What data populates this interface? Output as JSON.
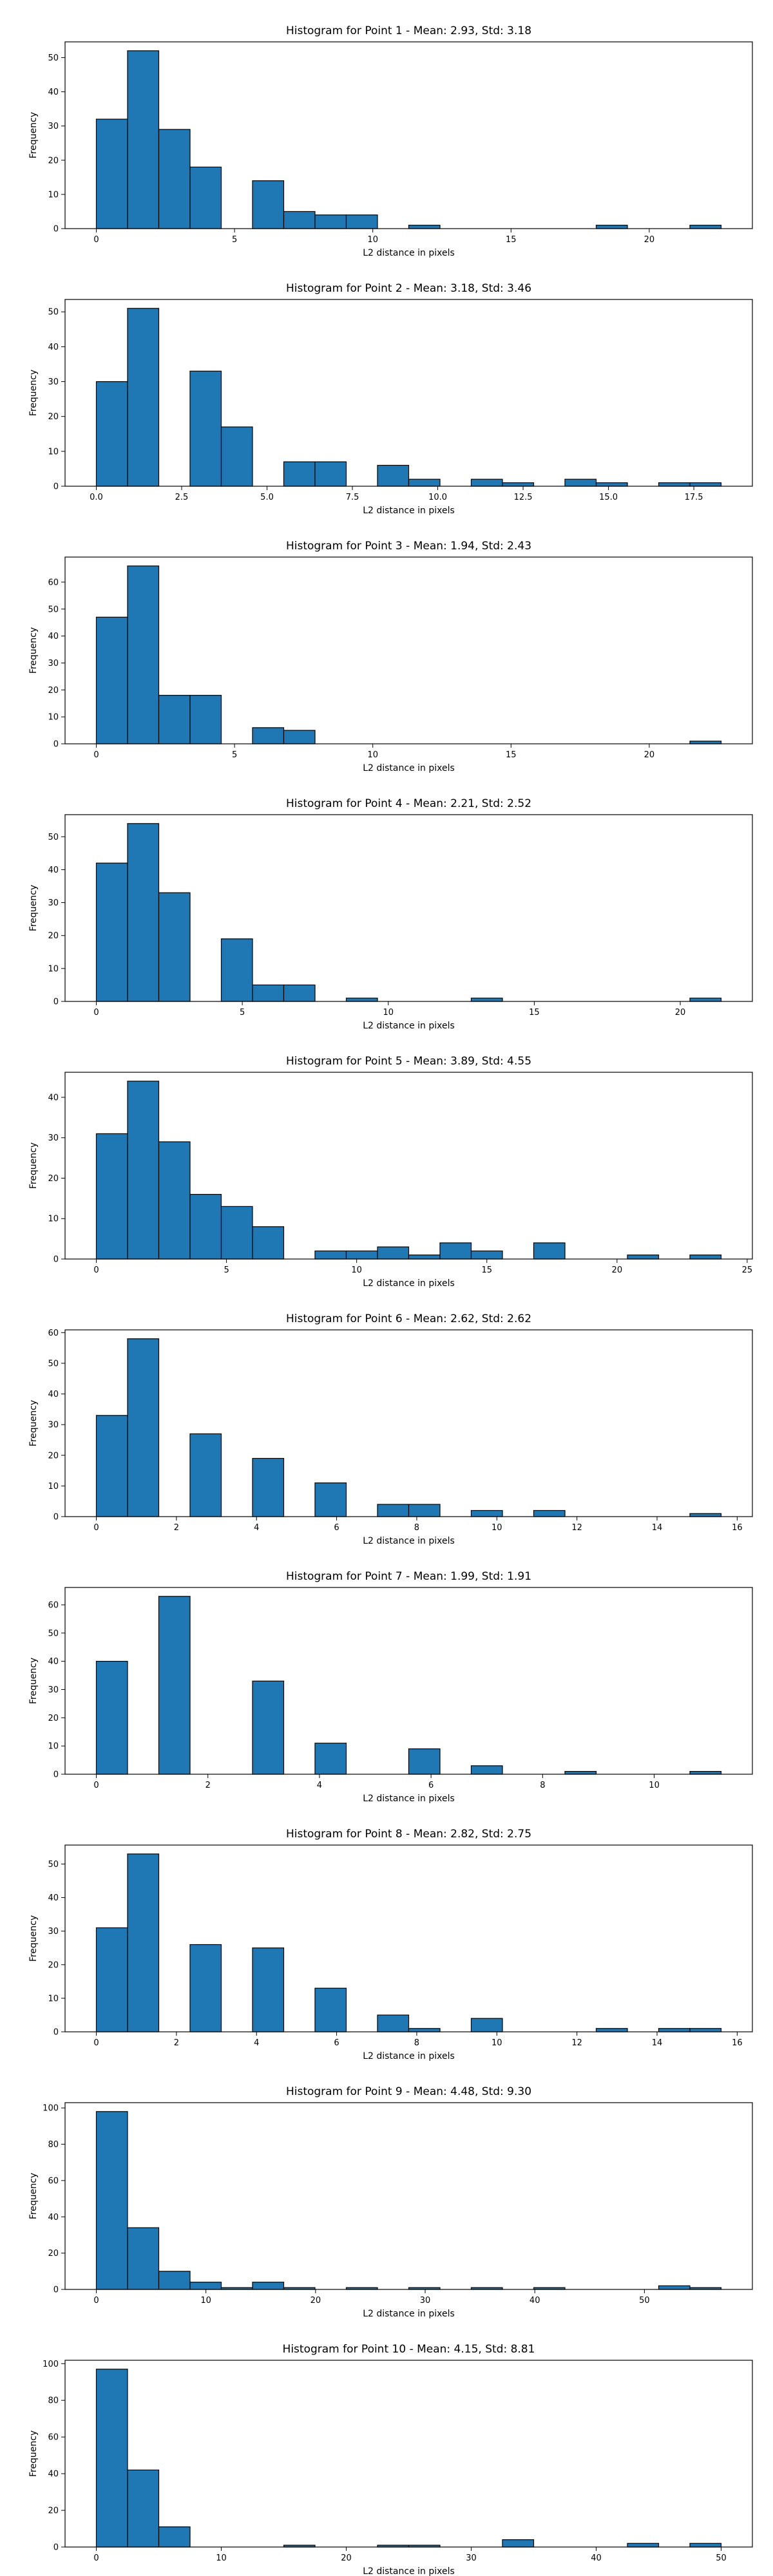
{
  "chart_data": [
    {
      "type": "bar",
      "title": "Histogram for Point 1 - Mean: 2.93, Std: 3.18",
      "xlabel": "L2 distance in pixels",
      "ylabel": "Frequency",
      "bin_width": 1.13,
      "bins": [
        {
          "x": 0.0,
          "count": 32
        },
        {
          "x": 1.13,
          "count": 52
        },
        {
          "x": 2.26,
          "count": 29
        },
        {
          "x": 3.39,
          "count": 18
        },
        {
          "x": 5.65,
          "count": 14
        },
        {
          "x": 6.78,
          "count": 5
        },
        {
          "x": 7.91,
          "count": 4
        },
        {
          "x": 9.04,
          "count": 4
        },
        {
          "x": 11.3,
          "count": 1
        },
        {
          "x": 18.08,
          "count": 1
        },
        {
          "x": 21.47,
          "count": 1
        }
      ],
      "xlim": [
        -1.13,
        23.73
      ],
      "ylim": [
        0,
        54.6
      ],
      "xticks": [
        0,
        5,
        10,
        15,
        20
      ],
      "xtick_labels": [
        "0",
        "5",
        "10",
        "15",
        "20"
      ],
      "yticks": [
        0,
        10,
        20,
        30,
        40,
        50
      ],
      "ytick_labels": [
        "0",
        "10",
        "20",
        "30",
        "40",
        "50"
      ]
    },
    {
      "type": "bar",
      "title": "Histogram for Point 2 - Mean: 3.18, Std: 3.46",
      "xlabel": "L2 distance in pixels",
      "ylabel": "Frequency",
      "bin_width": 0.915,
      "bins": [
        {
          "x": 0.0,
          "count": 30
        },
        {
          "x": 0.915,
          "count": 51
        },
        {
          "x": 2.745,
          "count": 33
        },
        {
          "x": 3.66,
          "count": 17
        },
        {
          "x": 5.49,
          "count": 7
        },
        {
          "x": 6.405,
          "count": 7
        },
        {
          "x": 8.235,
          "count": 6
        },
        {
          "x": 9.15,
          "count": 2
        },
        {
          "x": 10.98,
          "count": 2
        },
        {
          "x": 11.895,
          "count": 1
        },
        {
          "x": 13.725,
          "count": 2
        },
        {
          "x": 14.64,
          "count": 1
        },
        {
          "x": 16.47,
          "count": 1
        },
        {
          "x": 17.385,
          "count": 1
        }
      ],
      "xlim": [
        -0.915,
        19.215
      ],
      "ylim": [
        0,
        53.55
      ],
      "xticks": [
        0,
        2.5,
        5,
        7.5,
        10,
        12.5,
        15,
        17.5
      ],
      "xtick_labels": [
        "0.0",
        "2.5",
        "5.0",
        "7.5",
        "10.0",
        "12.5",
        "15.0",
        "17.5"
      ],
      "yticks": [
        0,
        10,
        20,
        30,
        40,
        50
      ],
      "ytick_labels": [
        "0",
        "10",
        "20",
        "30",
        "40",
        "50"
      ]
    },
    {
      "type": "bar",
      "title": "Histogram for Point 3 - Mean: 1.94, Std: 2.43",
      "xlabel": "L2 distance in pixels",
      "ylabel": "Frequency",
      "bin_width": 1.13,
      "bins": [
        {
          "x": 0.0,
          "count": 47
        },
        {
          "x": 1.13,
          "count": 66
        },
        {
          "x": 2.26,
          "count": 18
        },
        {
          "x": 3.39,
          "count": 18
        },
        {
          "x": 5.65,
          "count": 6
        },
        {
          "x": 6.78,
          "count": 5
        },
        {
          "x": 21.47,
          "count": 1
        }
      ],
      "xlim": [
        -1.13,
        23.73
      ],
      "ylim": [
        0,
        69.3
      ],
      "xticks": [
        0,
        5,
        10,
        15,
        20
      ],
      "xtick_labels": [
        "0",
        "5",
        "10",
        "15",
        "20"
      ],
      "yticks": [
        0,
        10,
        20,
        30,
        40,
        50,
        60
      ],
      "ytick_labels": [
        "0",
        "10",
        "20",
        "30",
        "40",
        "50",
        "60"
      ]
    },
    {
      "type": "bar",
      "title": "Histogram for Point 4 - Mean: 2.21, Std: 2.52",
      "xlabel": "L2 distance in pixels",
      "ylabel": "Frequency",
      "bin_width": 1.07,
      "bins": [
        {
          "x": 0.0,
          "count": 42
        },
        {
          "x": 1.07,
          "count": 54
        },
        {
          "x": 2.14,
          "count": 33
        },
        {
          "x": 4.28,
          "count": 19
        },
        {
          "x": 5.35,
          "count": 5
        },
        {
          "x": 6.42,
          "count": 5
        },
        {
          "x": 8.56,
          "count": 1
        },
        {
          "x": 12.84,
          "count": 1
        },
        {
          "x": 20.33,
          "count": 1
        }
      ],
      "xlim": [
        -1.07,
        22.47
      ],
      "ylim": [
        0,
        56.7
      ],
      "xticks": [
        0,
        5,
        10,
        15,
        20
      ],
      "xtick_labels": [
        "0",
        "5",
        "10",
        "15",
        "20"
      ],
      "yticks": [
        0,
        10,
        20,
        30,
        40,
        50
      ],
      "ytick_labels": [
        "0",
        "10",
        "20",
        "30",
        "40",
        "50"
      ]
    },
    {
      "type": "bar",
      "title": "Histogram for Point 5 - Mean: 3.89, Std: 4.55",
      "xlabel": "L2 distance in pixels",
      "ylabel": "Frequency",
      "bin_width": 1.2,
      "bins": [
        {
          "x": 0.0,
          "count": 31
        },
        {
          "x": 1.2,
          "count": 44
        },
        {
          "x": 2.4,
          "count": 29
        },
        {
          "x": 3.6,
          "count": 16
        },
        {
          "x": 4.8,
          "count": 13
        },
        {
          "x": 6.0,
          "count": 8
        },
        {
          "x": 8.4,
          "count": 2
        },
        {
          "x": 9.6,
          "count": 2
        },
        {
          "x": 10.8,
          "count": 3
        },
        {
          "x": 12.0,
          "count": 1
        },
        {
          "x": 13.2,
          "count": 4
        },
        {
          "x": 14.4,
          "count": 2
        },
        {
          "x": 16.8,
          "count": 4
        },
        {
          "x": 20.4,
          "count": 1
        },
        {
          "x": 22.8,
          "count": 1
        }
      ],
      "xlim": [
        -1.2,
        25.2
      ],
      "ylim": [
        0,
        46.2
      ],
      "xticks": [
        0,
        5,
        10,
        15,
        20,
        25
      ],
      "xtick_labels": [
        "0",
        "5",
        "10",
        "15",
        "20",
        "25"
      ],
      "yticks": [
        0,
        10,
        20,
        30,
        40
      ],
      "ytick_labels": [
        "0",
        "10",
        "20",
        "30",
        "40"
      ]
    },
    {
      "type": "bar",
      "title": "Histogram for Point 6 - Mean: 2.62, Std: 2.62",
      "xlabel": "L2 distance in pixels",
      "ylabel": "Frequency",
      "bin_width": 0.78,
      "bins": [
        {
          "x": 0.0,
          "count": 33
        },
        {
          "x": 0.78,
          "count": 58
        },
        {
          "x": 2.34,
          "count": 27
        },
        {
          "x": 3.9,
          "count": 19
        },
        {
          "x": 5.46,
          "count": 11
        },
        {
          "x": 7.02,
          "count": 4
        },
        {
          "x": 7.8,
          "count": 4
        },
        {
          "x": 9.36,
          "count": 2
        },
        {
          "x": 10.92,
          "count": 2
        },
        {
          "x": 14.82,
          "count": 1
        }
      ],
      "xlim": [
        -0.78,
        16.38
      ],
      "ylim": [
        0,
        60.9
      ],
      "xticks": [
        0,
        2,
        4,
        6,
        8,
        10,
        12,
        14,
        16
      ],
      "xtick_labels": [
        "0",
        "2",
        "4",
        "6",
        "8",
        "10",
        "12",
        "14",
        "16"
      ],
      "yticks": [
        0,
        10,
        20,
        30,
        40,
        50,
        60
      ],
      "ytick_labels": [
        "0",
        "10",
        "20",
        "30",
        "40",
        "50",
        "60"
      ]
    },
    {
      "type": "bar",
      "title": "Histogram for Point 7 - Mean: 1.99, Std: 1.91",
      "xlabel": "L2 distance in pixels",
      "ylabel": "Frequency",
      "bin_width": 0.56,
      "bins": [
        {
          "x": 0.0,
          "count": 40
        },
        {
          "x": 1.12,
          "count": 63
        },
        {
          "x": 2.8,
          "count": 33
        },
        {
          "x": 3.92,
          "count": 11
        },
        {
          "x": 5.6,
          "count": 9
        },
        {
          "x": 6.72,
          "count": 3
        },
        {
          "x": 8.4,
          "count": 1
        },
        {
          "x": 10.64,
          "count": 1
        }
      ],
      "xlim": [
        -0.56,
        11.76
      ],
      "ylim": [
        0,
        66.15
      ],
      "xticks": [
        0,
        2,
        4,
        6,
        8,
        10
      ],
      "xtick_labels": [
        "0",
        "2",
        "4",
        "6",
        "8",
        "10"
      ],
      "yticks": [
        0,
        10,
        20,
        30,
        40,
        50,
        60
      ],
      "ytick_labels": [
        "0",
        "10",
        "20",
        "30",
        "40",
        "50",
        "60"
      ]
    },
    {
      "type": "bar",
      "title": "Histogram for Point 8 - Mean: 2.82, Std: 2.75",
      "xlabel": "L2 distance in pixels",
      "ylabel": "Frequency",
      "bin_width": 0.78,
      "bins": [
        {
          "x": 0.0,
          "count": 31
        },
        {
          "x": 0.78,
          "count": 53
        },
        {
          "x": 2.34,
          "count": 26
        },
        {
          "x": 3.9,
          "count": 25
        },
        {
          "x": 5.46,
          "count": 13
        },
        {
          "x": 7.02,
          "count": 5
        },
        {
          "x": 7.8,
          "count": 1
        },
        {
          "x": 9.36,
          "count": 4
        },
        {
          "x": 12.48,
          "count": 1
        },
        {
          "x": 14.04,
          "count": 1
        },
        {
          "x": 14.82,
          "count": 1
        }
      ],
      "xlim": [
        -0.78,
        16.38
      ],
      "ylim": [
        0,
        55.65
      ],
      "xticks": [
        0,
        2,
        4,
        6,
        8,
        10,
        12,
        14,
        16
      ],
      "xtick_labels": [
        "0",
        "2",
        "4",
        "6",
        "8",
        "10",
        "12",
        "14",
        "16"
      ],
      "yticks": [
        0,
        10,
        20,
        30,
        40,
        50
      ],
      "ytick_labels": [
        "0",
        "10",
        "20",
        "30",
        "40",
        "50"
      ]
    },
    {
      "type": "bar",
      "title": "Histogram for Point 9 - Mean: 4.48, Std: 9.30",
      "xlabel": "L2 distance in pixels",
      "ylabel": "Frequency",
      "bin_width": 2.85,
      "bins": [
        {
          "x": 0.0,
          "count": 98
        },
        {
          "x": 2.85,
          "count": 34
        },
        {
          "x": 5.7,
          "count": 10
        },
        {
          "x": 8.55,
          "count": 4
        },
        {
          "x": 11.4,
          "count": 1
        },
        {
          "x": 14.25,
          "count": 4
        },
        {
          "x": 17.1,
          "count": 1
        },
        {
          "x": 22.8,
          "count": 1
        },
        {
          "x": 28.5,
          "count": 1
        },
        {
          "x": 34.2,
          "count": 1
        },
        {
          "x": 39.9,
          "count": 1
        },
        {
          "x": 51.3,
          "count": 2
        },
        {
          "x": 54.15,
          "count": 1
        }
      ],
      "xlim": [
        -2.85,
        59.85
      ],
      "ylim": [
        0,
        102.9
      ],
      "xticks": [
        0,
        10,
        20,
        30,
        40,
        50
      ],
      "xtick_labels": [
        "0",
        "10",
        "20",
        "30",
        "40",
        "50"
      ],
      "yticks": [
        0,
        20,
        40,
        60,
        80,
        100
      ],
      "ytick_labels": [
        "0",
        "20",
        "40",
        "60",
        "80",
        "100"
      ]
    },
    {
      "type": "bar",
      "title": "Histogram for Point 10 - Mean: 4.15, Std: 8.81",
      "xlabel": "L2 distance in pixels",
      "ylabel": "Frequency",
      "bin_width": 2.5,
      "bins": [
        {
          "x": 0.0,
          "count": 97
        },
        {
          "x": 2.5,
          "count": 42
        },
        {
          "x": 5.0,
          "count": 11
        },
        {
          "x": 15.0,
          "count": 1
        },
        {
          "x": 22.5,
          "count": 1
        },
        {
          "x": 25.0,
          "count": 1
        },
        {
          "x": 32.5,
          "count": 4
        },
        {
          "x": 42.5,
          "count": 2
        },
        {
          "x": 47.5,
          "count": 2
        }
      ],
      "xlim": [
        -2.5,
        52.5
      ],
      "ylim": [
        0,
        101.85
      ],
      "xticks": [
        0,
        10,
        20,
        30,
        40,
        50
      ],
      "xtick_labels": [
        "0",
        "10",
        "20",
        "30",
        "40",
        "50"
      ],
      "yticks": [
        0,
        20,
        40,
        60,
        80,
        100
      ],
      "ytick_labels": [
        "0",
        "20",
        "40",
        "60",
        "80",
        "100"
      ]
    }
  ]
}
